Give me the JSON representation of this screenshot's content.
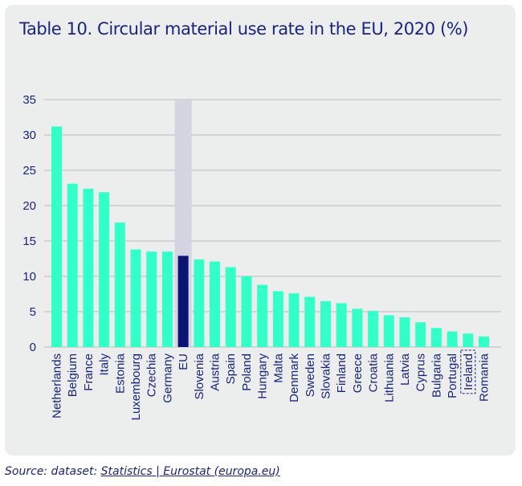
{
  "title": "Table 10. Circular material use rate in the EU, 2020 (%)",
  "source": {
    "prefix": "Source: dataset: ",
    "link_text": "Statistics | Eurostat (europa.eu)"
  },
  "colors": {
    "bar": "#33ffc9",
    "highlight_bar": "#0b1374",
    "highlight_band": "#d3d5e2",
    "text": "#1a237e",
    "grid": "#b9bcbf"
  },
  "chart_data": {
    "type": "bar",
    "title": "Table 10. Circular material use rate in the EU, 2020 (%)",
    "xlabel": "",
    "ylabel": "",
    "ylim": [
      0,
      35
    ],
    "yticks": [
      0,
      5,
      10,
      15,
      20,
      25,
      30,
      35
    ],
    "grid": true,
    "legend": "none",
    "categories": [
      "Netherlands",
      "Belgium",
      "France",
      "Italy",
      "Estonia",
      "Luxembourg",
      "Czechia",
      "Germany",
      "EU",
      "Slovenia",
      "Austria",
      "Spain",
      "Poland",
      "Hungary",
      "Malta",
      "Denmark",
      "Sweden",
      "Slovakia",
      "Finland",
      "Greece",
      "Croatia",
      "Lithuania",
      "Latvia",
      "Cyprus",
      "Bulgaria",
      "Portugal",
      "Ireland",
      "Romania"
    ],
    "values": [
      31.2,
      23.1,
      22.4,
      21.9,
      17.6,
      13.8,
      13.5,
      13.5,
      12.9,
      12.4,
      12.1,
      11.3,
      10.0,
      8.8,
      7.9,
      7.6,
      7.1,
      6.5,
      6.2,
      5.4,
      5.1,
      4.5,
      4.2,
      3.5,
      2.7,
      2.2,
      1.9,
      1.5
    ],
    "highlighted": "EU",
    "boxed": "Ireland"
  }
}
